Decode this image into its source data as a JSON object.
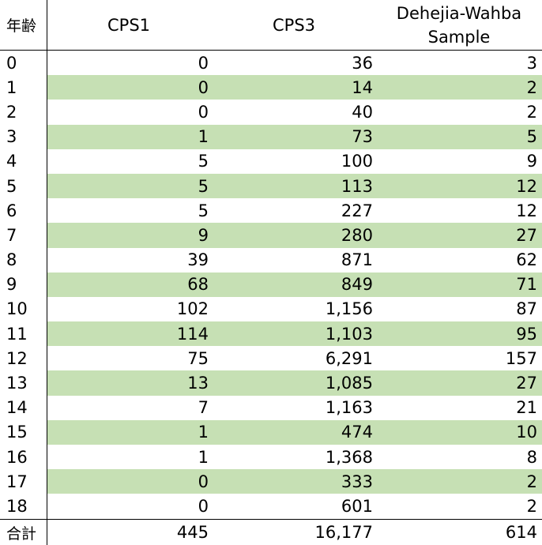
{
  "table": {
    "headers": {
      "age": "年齢",
      "cps1": "CPS1",
      "cps3": "CPS3",
      "dw_line1": "Dehejia-Wahba",
      "dw_line2": "Sample"
    },
    "rows": [
      {
        "age": "0",
        "cps1": "0",
        "cps3": "36",
        "dw": "3"
      },
      {
        "age": "1",
        "cps1": "0",
        "cps3": "14",
        "dw": "2"
      },
      {
        "age": "2",
        "cps1": "0",
        "cps3": "40",
        "dw": "2"
      },
      {
        "age": "3",
        "cps1": "1",
        "cps3": "73",
        "dw": "5"
      },
      {
        "age": "4",
        "cps1": "5",
        "cps3": "100",
        "dw": "9"
      },
      {
        "age": "5",
        "cps1": "5",
        "cps3": "113",
        "dw": "12"
      },
      {
        "age": "6",
        "cps1": "5",
        "cps3": "227",
        "dw": "12"
      },
      {
        "age": "7",
        "cps1": "9",
        "cps3": "280",
        "dw": "27"
      },
      {
        "age": "8",
        "cps1": "39",
        "cps3": "871",
        "dw": "62"
      },
      {
        "age": "9",
        "cps1": "68",
        "cps3": "849",
        "dw": "71"
      },
      {
        "age": "10",
        "cps1": "102",
        "cps3": "1,156",
        "dw": "87"
      },
      {
        "age": "11",
        "cps1": "114",
        "cps3": "1,103",
        "dw": "95"
      },
      {
        "age": "12",
        "cps1": "75",
        "cps3": "6,291",
        "dw": "157"
      },
      {
        "age": "13",
        "cps1": "13",
        "cps3": "1,085",
        "dw": "27"
      },
      {
        "age": "14",
        "cps1": "7",
        "cps3": "1,163",
        "dw": "21"
      },
      {
        "age": "15",
        "cps1": "1",
        "cps3": "474",
        "dw": "10"
      },
      {
        "age": "16",
        "cps1": "1",
        "cps3": "1,368",
        "dw": "8"
      },
      {
        "age": "17",
        "cps1": "0",
        "cps3": "333",
        "dw": "2"
      },
      {
        "age": "18",
        "cps1": "0",
        "cps3": "601",
        "dw": "2"
      }
    ],
    "total": {
      "label": "合計",
      "cps1": "445",
      "cps3": "16,177",
      "dw": "614"
    },
    "colors": {
      "band": "#c6e0b4",
      "rule": "#000000"
    }
  }
}
